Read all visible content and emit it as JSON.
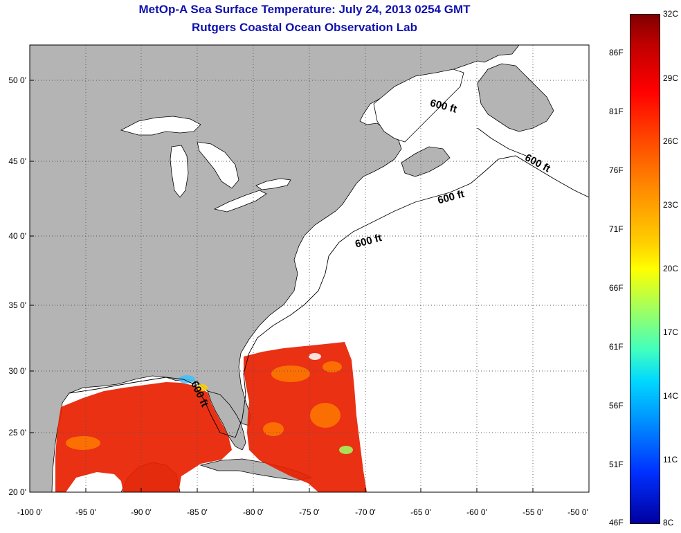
{
  "title": "MetOp-A Sea Surface Temperature:  July 24, 2013 0254 GMT",
  "subtitle": "Rutgers Coastal Ocean Observation Lab",
  "lat_ticks": [
    "50 0'",
    "45 0'",
    "40 0'",
    "35 0'",
    "30 0'",
    "25 0'",
    "20 0'"
  ],
  "lon_ticks": [
    "-100 0'",
    "-95 0'",
    "-90 0'",
    "-85 0'",
    "-80 0'",
    "-75 0'",
    "-70 0'",
    "-65 0'",
    "-60 0'",
    "-55 0'",
    "-50 0'"
  ],
  "isobath_labels": [
    "600 ft",
    "600 ft",
    "600 ft",
    "600 ft",
    "600 ft"
  ],
  "colorbar": {
    "celsius": [
      "32C",
      "29C",
      "26C",
      "23C",
      "20C",
      "17C",
      "14C",
      "11C",
      "8C"
    ],
    "fahrenheit": [
      "86F",
      "81F",
      "76F",
      "71F",
      "66F",
      "61F",
      "56F",
      "51F",
      "46F"
    ]
  },
  "colors": {
    "land": "#b4b4b4",
    "ocean": "#ffffff",
    "title": "#1010b0",
    "sst_warm": "#e82000"
  }
}
